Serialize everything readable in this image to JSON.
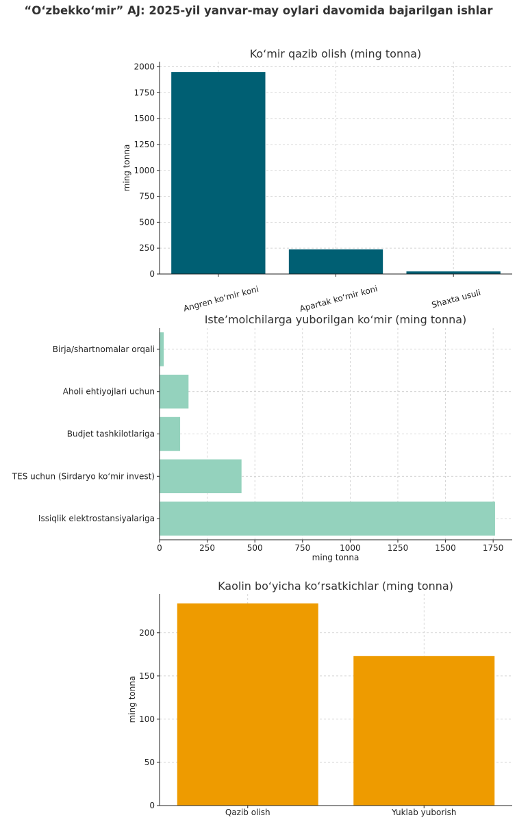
{
  "title": "“O‘zbekko‘mir” AJ: 2025-yil yanvar-may oylari davomida bajarilgan ishlar",
  "colors": {
    "chart1": "#005f73",
    "chart2": "#94d2bd",
    "chart3": "#ee9b00"
  },
  "chart_data": [
    {
      "type": "bar",
      "orientation": "vertical",
      "title": "Ko‘mir qazib olish (ming tonna)",
      "xlabel": "",
      "ylabel": "ming tonna",
      "categories": [
        "Angren ko‘mir koni",
        "Apartak ko‘mir koni",
        "Shaxta usuli"
      ],
      "values": [
        1950,
        237,
        25
      ],
      "ylim": [
        0,
        2050
      ],
      "yticks": [
        0,
        250,
        500,
        750,
        1000,
        1250,
        1500,
        1750,
        2000
      ],
      "grid": true
    },
    {
      "type": "bar",
      "orientation": "horizontal",
      "title": "Iste’molchilarga yuborilgan ko‘mir (ming tonna)",
      "xlabel": "ming tonna",
      "ylabel": "",
      "categories": [
        "Issiqlik elektrostansiyalariga",
        "TES uchun (Sirdaryo ko‘mir invest)",
        "Budjet tashkilotlariga",
        "Aholi ehtiyojlari uchun",
        "Birja/shartnomalar orqali"
      ],
      "values": [
        1760,
        430,
        108,
        152,
        22
      ],
      "xlim": [
        0,
        1850
      ],
      "xticks": [
        0,
        250,
        500,
        750,
        1000,
        1250,
        1500,
        1750
      ],
      "grid": true
    },
    {
      "type": "bar",
      "orientation": "vertical",
      "title": "Kaolin bo‘yicha ko‘rsatkichlar (ming tonna)",
      "xlabel": "",
      "ylabel": "ming tonna",
      "categories": [
        "Qazib olish",
        "Yuklab yuborish"
      ],
      "values": [
        234,
        173
      ],
      "ylim": [
        0,
        245
      ],
      "yticks": [
        0,
        50,
        100,
        150,
        200
      ],
      "grid": true
    }
  ]
}
